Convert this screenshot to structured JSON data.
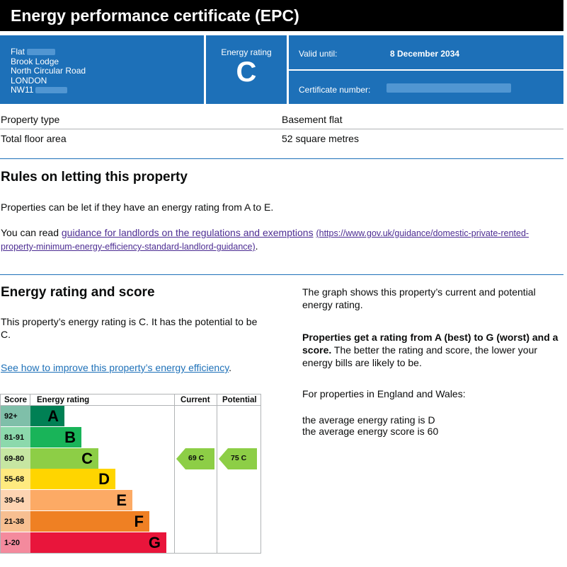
{
  "header": {
    "title": "Energy performance certificate (EPC)"
  },
  "address": {
    "line1": "Flat",
    "line2": "Brook Lodge",
    "line3": "North Circular Road",
    "line4": "LONDON",
    "line5": "NW11"
  },
  "rating_box": {
    "label": "Energy rating",
    "value": "C"
  },
  "valid": {
    "label": "Valid until:",
    "value": "8 December 2034"
  },
  "certificate": {
    "label": "Certificate number:"
  },
  "property": [
    {
      "key": "Property type",
      "value": "Basement flat"
    },
    {
      "key": "Total floor area",
      "value": "52 square metres"
    }
  ],
  "letting": {
    "heading": "Rules on letting this property",
    "para1": "Properties can be let if they have an energy rating from A to E.",
    "para2_prefix": "You can read ",
    "link_text": "guidance for landlords on the regulations and exemptions",
    "url_text_a": "(https://www.gov.uk/guidance/domestic-private-rented-",
    "url_text_b": "property-minimum-energy-efficiency-standard-landlord-guidance)",
    "suffix": "."
  },
  "energy": {
    "heading": "Energy rating and score",
    "para1": "This property’s energy rating is C. It has the potential to be C.",
    "link_text": "See how to improve this property’s energy efficiency",
    "link_suffix": "."
  },
  "right_col": {
    "para1": "The graph shows this property’s current and potential energy rating.",
    "bold": "Properties get a rating from A (best) to G (worst) and a score.",
    "rest": " The better the rating and score, the lower your energy bills are likely to be.",
    "para3": "For properties in England and Wales:",
    "avg1": "the average energy rating is D",
    "avg2": "the average energy score is 60"
  },
  "graph": {
    "headers": {
      "score": "Score",
      "rating": "Energy rating",
      "current": "Current",
      "potential": "Potential"
    },
    "bands": [
      {
        "score": "92+",
        "letter": "A",
        "color": "#008054",
        "score_bg": "#7fbfa9"
      },
      {
        "score": "81-91",
        "letter": "B",
        "color": "#19b459",
        "score_bg": "#8cd9ac"
      },
      {
        "score": "69-80",
        "letter": "C",
        "color": "#8dce46",
        "score_bg": "#c6e6a2"
      },
      {
        "score": "55-68",
        "letter": "D",
        "color": "#ffd500",
        "score_bg": "#ffea7f"
      },
      {
        "score": "39-54",
        "letter": "E",
        "color": "#fcaa65",
        "score_bg": "#fdd4b2"
      },
      {
        "score": "21-38",
        "letter": "F",
        "color": "#ef8023",
        "score_bg": "#f7bf91"
      },
      {
        "score": "1-20",
        "letter": "G",
        "color": "#e9153b",
        "score_bg": "#f48a9d"
      }
    ],
    "current": {
      "label": "69 C",
      "color": "#8dce46"
    },
    "potential": {
      "label": "75 C",
      "color": "#8dce46"
    }
  }
}
